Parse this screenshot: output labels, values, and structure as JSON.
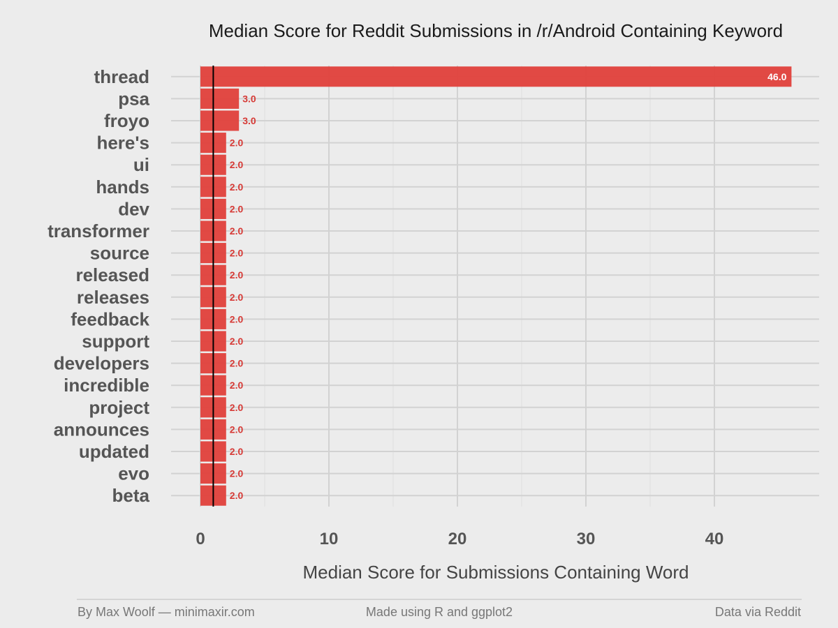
{
  "chart_data": {
    "type": "bar",
    "orientation": "horizontal",
    "title": "Median Score for Reddit Submissions in /r/Android Containing Keyword",
    "xlabel": "Median Score for Submissions Containing Word",
    "ylabel": "",
    "xlim": [
      0,
      48
    ],
    "x_ticks": [
      0,
      10,
      20,
      30,
      40
    ],
    "reference_line": 1,
    "grid": true,
    "bar_color": "#e0403b",
    "categories": [
      "thread",
      "psa",
      "froyo",
      "here's",
      "ui",
      "hands",
      "dev",
      "transformer",
      "source",
      "released",
      "releases",
      "feedback",
      "support",
      "developers",
      "incredible",
      "project",
      "announces",
      "updated",
      "evo",
      "beta"
    ],
    "values": [
      46.0,
      3.0,
      3.0,
      2.0,
      2.0,
      2.0,
      2.0,
      2.0,
      2.0,
      2.0,
      2.0,
      2.0,
      2.0,
      2.0,
      2.0,
      2.0,
      2.0,
      2.0,
      2.0,
      2.0
    ],
    "value_labels": [
      "46.0",
      "3.0",
      "3.0",
      "2.0",
      "2.0",
      "2.0",
      "2.0",
      "2.0",
      "2.0",
      "2.0",
      "2.0",
      "2.0",
      "2.0",
      "2.0",
      "2.0",
      "2.0",
      "2.0",
      "2.0",
      "2.0",
      "2.0"
    ]
  },
  "footer": {
    "left": "By Max Woolf — minimaxir.com",
    "center": "Made using R and ggplot2",
    "right": "Data via Reddit"
  }
}
